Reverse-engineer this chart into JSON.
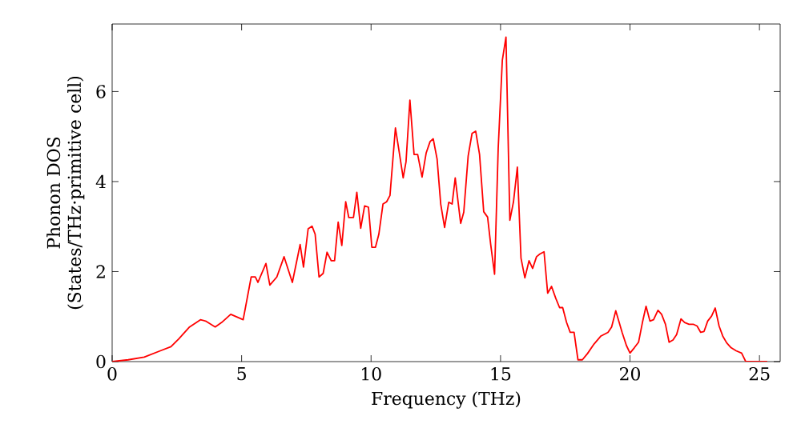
{
  "chart_data": {
    "type": "line",
    "xlabel": "Frequency (THz)",
    "ylabel": "Phonon DOS (States/THz·primitive cell)",
    "xlim": [
      0,
      25.8
    ],
    "ylim": [
      0,
      7.5
    ],
    "xticks": [
      0,
      5,
      10,
      15,
      20,
      25
    ],
    "yticks": [
      0,
      2,
      4,
      6
    ],
    "grid": false,
    "marker": "none",
    "line_style": "solid",
    "series": [
      {
        "color": "#ff0000",
        "x": [
          0,
          0.62,
          1.24,
          1.86,
          2.27,
          2.58,
          2.99,
          3.41,
          3.61,
          3.98,
          4.23,
          4.58,
          5.06,
          5.37,
          5.53,
          5.63,
          5.94,
          6.09,
          6.36,
          6.64,
          6.96,
          7.26,
          7.39,
          7.57,
          7.72,
          7.84,
          7.99,
          8.15,
          8.3,
          8.46,
          8.59,
          8.73,
          8.87,
          9.02,
          9.14,
          9.32,
          9.45,
          9.6,
          9.75,
          9.9,
          10.03,
          10.17,
          10.3,
          10.46,
          10.6,
          10.73,
          10.94,
          11.08,
          11.24,
          11.35,
          11.5,
          11.66,
          11.8,
          11.97,
          12.13,
          12.28,
          12.4,
          12.55,
          12.69,
          12.84,
          13.0,
          13.13,
          13.25,
          13.46,
          13.58,
          13.75,
          13.9,
          14.04,
          14.19,
          14.35,
          14.5,
          14.62,
          14.77,
          14.91,
          15.07,
          15.21,
          15.36,
          15.5,
          15.65,
          15.79,
          15.94,
          16.1,
          16.24,
          16.39,
          16.52,
          16.68,
          16.82,
          16.97,
          17.13,
          17.28,
          17.4,
          17.55,
          17.69,
          17.84,
          17.99,
          18.16,
          18.36,
          18.61,
          18.88,
          19.15,
          19.29,
          19.45,
          19.7,
          19.86,
          20.0,
          20.17,
          20.33,
          20.48,
          20.62,
          20.77,
          20.91,
          21.08,
          21.22,
          21.37,
          21.51,
          21.66,
          21.8,
          21.97,
          22.11,
          22.28,
          22.44,
          22.59,
          22.73,
          22.86,
          23.0,
          23.15,
          23.29,
          23.44,
          23.58,
          23.73,
          23.9,
          24.1,
          24.31,
          24.47,
          25.3
        ],
        "values": [
          0,
          0.04,
          0.1,
          0.24,
          0.33,
          0.51,
          0.77,
          0.93,
          0.9,
          0.77,
          0.87,
          1.05,
          0.93,
          1.88,
          1.88,
          1.76,
          2.18,
          1.7,
          1.88,
          2.33,
          1.76,
          2.6,
          2.1,
          2.95,
          3.01,
          2.83,
          1.88,
          1.96,
          2.43,
          2.24,
          2.24,
          3.1,
          2.58,
          3.55,
          3.2,
          3.2,
          3.76,
          2.96,
          3.46,
          3.43,
          2.54,
          2.54,
          2.83,
          3.5,
          3.55,
          3.69,
          5.19,
          4.68,
          4.08,
          4.44,
          5.81,
          4.6,
          4.6,
          4.1,
          4.64,
          4.89,
          4.95,
          4.5,
          3.5,
          2.98,
          3.54,
          3.5,
          4.08,
          3.07,
          3.32,
          4.57,
          5.07,
          5.12,
          4.6,
          3.33,
          3.21,
          2.6,
          1.94,
          4.74,
          6.7,
          7.21,
          3.14,
          3.55,
          4.32,
          2.3,
          1.86,
          2.24,
          2.07,
          2.33,
          2.39,
          2.44,
          1.52,
          1.67,
          1.41,
          1.2,
          1.2,
          0.87,
          0.65,
          0.65,
          0.04,
          0.04,
          0.18,
          0.39,
          0.57,
          0.65,
          0.77,
          1.13,
          0.64,
          0.36,
          0.19,
          0.31,
          0.43,
          0.87,
          1.23,
          0.9,
          0.93,
          1.14,
          1.05,
          0.83,
          0.43,
          0.48,
          0.6,
          0.95,
          0.87,
          0.83,
          0.83,
          0.79,
          0.65,
          0.67,
          0.9,
          1.01,
          1.19,
          0.79,
          0.57,
          0.42,
          0.31,
          0.24,
          0.19,
          0,
          0
        ]
      }
    ]
  }
}
